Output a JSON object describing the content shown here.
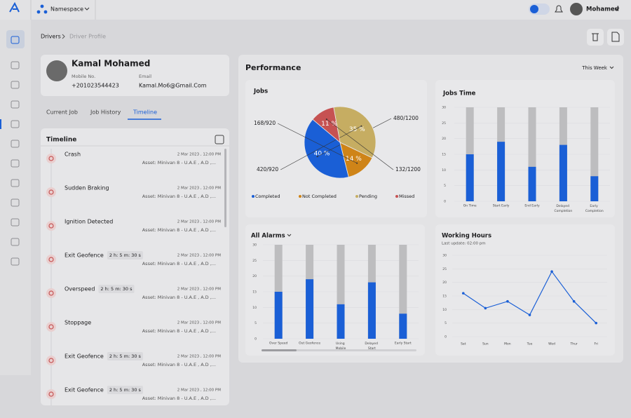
{
  "header": {
    "namespace": "Namespace",
    "user": "Mohamed"
  },
  "breadcrumb": [
    "Drivers",
    "Driver Profile"
  ],
  "profile": {
    "name": "Kamal Mohamed",
    "mobile_label": "Mobile No.",
    "mobile": "+201023544423",
    "email_label": "Email",
    "email": "Kamal.Mo6@Gmail.Com"
  },
  "tabs": [
    "Current Job",
    "Job History",
    "Timeline"
  ],
  "timeline": {
    "title": "Timeline",
    "events": [
      {
        "title": "Crash",
        "date": "2 Mar 2023 , 12:00 PM",
        "asset": "Asset: Minivan 8 - U.A.E , A.D ,..."
      },
      {
        "title": "Sudden Braking",
        "date": "2 Mar 2023 , 12:00 PM",
        "asset": "Asset: Minivan 8 - U.A.E , A.D ,..."
      },
      {
        "title": "Ignition Detected",
        "date": "2 Mar 2023 , 12:00 PM",
        "asset": "Asset: Minivan 8 - U.A.E , A.D ,..."
      },
      {
        "title": "Exit Geofence",
        "duration": "2 h: 5 m: 30 s",
        "date": "2 Mar 2023 , 12:00 PM",
        "asset": "Asset: Minivan 8 - U.A.E , A.D ,..."
      },
      {
        "title": "Overspeed",
        "duration": "2 h: 5 m: 30 s",
        "date": "2 Mar 2023 , 12:00 PM",
        "asset": "Asset: Minivan 8 - U.A.E , A.D ,..."
      },
      {
        "title": "Stoppage",
        "date": "2 Mar 2023 , 12:00 PM",
        "asset": "Asset: Minivan 8 - U.A.E , A.D ,..."
      },
      {
        "title": "Exit Geofence",
        "duration": "2 h: 5 m: 30 s",
        "date": "2 Mar 2023 , 12:00 PM",
        "asset": "Asset: Minivan 8 - U.A.E , A.D ,..."
      },
      {
        "title": "Exit Geofence",
        "duration": "2 h: 5 m: 30 s",
        "date": "2 Mar 2023 , 12:00 PM",
        "asset": "Asset: Minivan 8 - U.A.E , A.D ,..."
      }
    ]
  },
  "performance": {
    "title": "Performance",
    "period": "This Week"
  },
  "chart_data": [
    {
      "type": "pie",
      "title": "Jobs",
      "categories": [
        "Completed",
        "Not Completed",
        "Pending",
        "Missed"
      ],
      "values": [
        40,
        14,
        35,
        11
      ],
      "value_labels": [
        "40 %",
        "14 %",
        "35 %",
        "11 %"
      ],
      "callouts": [
        "480/1200",
        "168/920",
        "420/920",
        "132/1200"
      ],
      "colors": [
        "#1a5fd6",
        "#cf8418",
        "#c6ad62",
        "#c65252"
      ]
    },
    {
      "type": "bar",
      "title": "Jobs Time",
      "categories": [
        "On Time",
        "Start Early",
        "End Early",
        "Delayed Completion",
        "Early Completion"
      ],
      "values": [
        15,
        19,
        11,
        18,
        8
      ],
      "color": "#1a5fd6",
      "track_color": "#bdbdbf",
      "ylim": [
        0,
        30
      ],
      "yticks": [
        0,
        5,
        10,
        15,
        20,
        25,
        30
      ],
      "grid": true
    },
    {
      "type": "bar",
      "title": "All Alarms",
      "categories": [
        "Over Speed",
        "Out Geofence",
        "Using Mobile",
        "Delayed Start",
        "Early Start"
      ],
      "values": [
        15,
        19,
        11,
        18,
        8
      ],
      "color": "#1a5fd6",
      "track_color": "#bdbdbf",
      "ylim": [
        0,
        30
      ],
      "yticks": [
        0,
        5,
        10,
        15,
        20,
        25,
        30
      ],
      "grid": true
    },
    {
      "type": "line",
      "title": "Working Hours",
      "subtitle": "Last update: 02:00 pm",
      "categories": [
        "Sat",
        "Sun",
        "Mon",
        "Tue",
        "Wed",
        "Thur",
        "Fri"
      ],
      "values": [
        16,
        10.5,
        13,
        8,
        24,
        13,
        5
      ],
      "color": "#1a5fd6",
      "ylim": [
        0,
        30
      ],
      "yticks": [
        0,
        5,
        10,
        15,
        20,
        25,
        30
      ],
      "grid": true
    }
  ]
}
